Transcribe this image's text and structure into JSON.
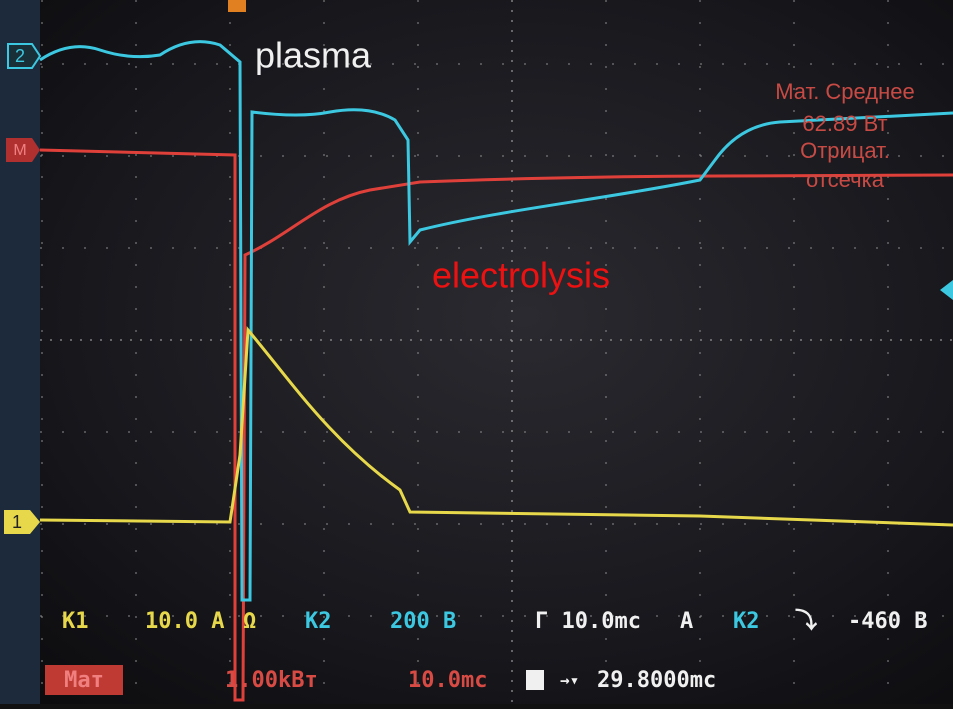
{
  "annotations": {
    "plasma": "plasma",
    "electrolysis": "electrolysis"
  },
  "channel_markers": {
    "ch2": "2",
    "math": "M",
    "ch1": "1"
  },
  "measurement": {
    "title": "Мат. Среднее",
    "value": "62.89 Вт",
    "line3": "Отрицат.",
    "line4": "отсечка"
  },
  "status_bar": {
    "k1_label": "K1",
    "k1_scale": "10.0 A",
    "k1_impedance": "Ω",
    "k2_label": "K2",
    "k2_scale": "200 B",
    "timebase": "Г 10.0mc",
    "trigger_mode": "A",
    "trigger_source": "K2",
    "trigger_level": "-460 B",
    "math_label": "Мат",
    "math_scale": "1.00kВт",
    "math_time": "10.0mc",
    "trigger_pos": "29.8000mc"
  }
}
